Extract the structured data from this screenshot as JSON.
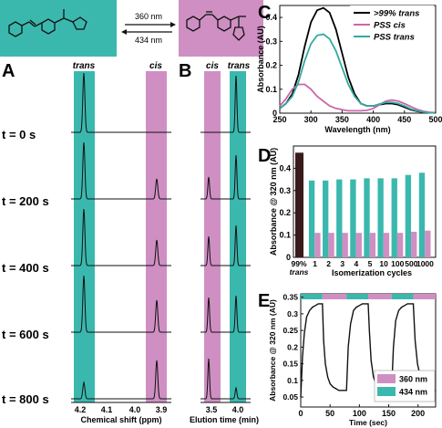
{
  "colors": {
    "teal": "#3bb8ae",
    "pink": "#cf8fc3",
    "dark": "#3a1a1a",
    "trans_line": "#000000",
    "cis_line": "#cc66aa",
    "pss_trans_line": "#33aaa0"
  },
  "scheme": {
    "arrow_top": "360 nm",
    "arrow_bottom": "434 nm"
  },
  "panels": {
    "A": "A",
    "B": "B",
    "C": "C",
    "D": "D",
    "E": "E"
  },
  "panel_A": {
    "label_trans": "trans",
    "label_cis": "cis",
    "times": [
      "t = 0 s",
      "t = 200 s",
      "t = 400 s",
      "t = 600 s",
      "t = 800 s"
    ],
    "xticks": [
      "4.2",
      "4.1",
      "4.0",
      "3.9"
    ],
    "xlabel": "Chemical shift (ppm)"
  },
  "panel_B": {
    "label_cis": "cis",
    "label_trans": "trans",
    "xticks": [
      "3.5",
      "4.0"
    ],
    "xlabel": "Elution time (min)"
  },
  "chart_data": [
    {
      "id": "C",
      "type": "line",
      "xlabel": "Wavelength (nm)",
      "ylabel": "Absorbance (AU)",
      "xlim": [
        250,
        500
      ],
      "ylim": [
        0,
        0.45
      ],
      "xticks": [
        "250",
        "300",
        "350",
        "400",
        "450",
        "500"
      ],
      "yticks": [
        "0",
        "0.1",
        "0.2",
        "0.3",
        "0.4"
      ],
      "legend_position": "top-right",
      "series": [
        {
          "name": ">99% trans",
          "x": [
            250,
            260,
            270,
            280,
            290,
            300,
            310,
            320,
            330,
            340,
            350,
            360,
            370,
            380,
            390,
            400,
            410,
            420,
            430,
            440,
            450,
            460,
            470,
            480,
            490,
            500
          ],
          "y": [
            0.02,
            0.04,
            0.08,
            0.16,
            0.28,
            0.38,
            0.43,
            0.44,
            0.42,
            0.35,
            0.25,
            0.15,
            0.08,
            0.04,
            0.03,
            0.03,
            0.035,
            0.04,
            0.04,
            0.035,
            0.025,
            0.015,
            0.008,
            0.004,
            0.002,
            0.001
          ]
        },
        {
          "name": "PSS cis",
          "x": [
            250,
            260,
            270,
            280,
            290,
            300,
            310,
            320,
            330,
            340,
            350,
            360,
            370,
            380,
            390,
            400,
            410,
            420,
            430,
            440,
            450,
            460,
            470,
            480,
            490,
            500
          ],
          "y": [
            0.03,
            0.06,
            0.1,
            0.12,
            0.12,
            0.1,
            0.07,
            0.05,
            0.03,
            0.02,
            0.015,
            0.01,
            0.01,
            0.01,
            0.012,
            0.02,
            0.035,
            0.05,
            0.055,
            0.05,
            0.04,
            0.028,
            0.016,
            0.008,
            0.004,
            0.002
          ]
        },
        {
          "name": "PSS trans",
          "x": [
            250,
            260,
            270,
            280,
            290,
            300,
            310,
            320,
            330,
            340,
            350,
            360,
            370,
            380,
            390,
            400,
            410,
            420,
            430,
            440,
            450,
            460,
            470,
            480,
            490,
            500
          ],
          "y": [
            0.02,
            0.04,
            0.07,
            0.13,
            0.22,
            0.29,
            0.325,
            0.33,
            0.31,
            0.26,
            0.19,
            0.12,
            0.07,
            0.04,
            0.03,
            0.03,
            0.038,
            0.045,
            0.045,
            0.04,
            0.03,
            0.018,
            0.01,
            0.005,
            0.002,
            0.001
          ]
        }
      ]
    },
    {
      "id": "D",
      "type": "bar",
      "xlabel": "Isomerization cycles",
      "ylabel": "Absorbance @ 320 nm (AU)",
      "ylim": [
        0,
        0.5
      ],
      "yticks": [
        "0",
        "0.1",
        "0.2",
        "0.3",
        "0.4"
      ],
      "reference": {
        "label": "99%",
        "sublabel": "trans",
        "value": 0.47
      },
      "categories": [
        "1",
        "2",
        "3",
        "4",
        "5",
        "10",
        "100",
        "500",
        "1000"
      ],
      "series": [
        {
          "values": [
            0.11,
            0.11,
            0.11,
            0.11,
            0.11,
            0.11,
            0.11,
            0.115,
            0.12
          ]
        },
        {
          "values": [
            0.345,
            0.345,
            0.35,
            0.35,
            0.355,
            0.355,
            0.355,
            0.37,
            0.38
          ]
        }
      ]
    },
    {
      "id": "E",
      "type": "line",
      "xlabel": "Time (sec)",
      "ylabel": "Absorbance @ 320 nm (AU)",
      "xlim": [
        0,
        230
      ],
      "ylim": [
        0.02,
        0.36
      ],
      "xticks": [
        "0",
        "50",
        "100",
        "150",
        "200"
      ],
      "yticks": [
        "0.05",
        "0.1",
        "0.15",
        "0.2",
        "0.25",
        "0.3",
        "0.35"
      ],
      "legend_position": "bottom-right",
      "legend": [
        {
          "name": "360 nm",
          "color_key": "pink"
        },
        {
          "name": "434 nm",
          "color_key": "teal"
        }
      ],
      "irradiation_bar": [
        {
          "start": 0,
          "end": 37,
          "color_key": "teal"
        },
        {
          "start": 37,
          "end": 78,
          "color_key": "pink"
        },
        {
          "start": 78,
          "end": 115,
          "color_key": "teal"
        },
        {
          "start": 115,
          "end": 155,
          "color_key": "pink"
        },
        {
          "start": 155,
          "end": 192,
          "color_key": "teal"
        },
        {
          "start": 192,
          "end": 230,
          "color_key": "pink"
        }
      ],
      "series": [
        {
          "x": [
            0,
            3,
            6,
            10,
            15,
            20,
            25,
            30,
            35,
            37,
            39,
            42,
            46,
            50,
            55,
            60,
            65,
            70,
            75,
            78,
            81,
            85,
            90,
            95,
            100,
            105,
            110,
            115,
            117,
            120,
            124,
            128,
            133,
            138,
            143,
            148,
            153,
            155,
            158,
            162,
            167,
            172,
            177,
            182,
            188,
            192,
            195,
            199,
            204,
            209,
            214,
            219,
            224,
            230
          ],
          "y": [
            0.05,
            0.17,
            0.24,
            0.29,
            0.31,
            0.32,
            0.325,
            0.33,
            0.33,
            0.33,
            0.22,
            0.15,
            0.11,
            0.09,
            0.08,
            0.075,
            0.07,
            0.07,
            0.07,
            0.07,
            0.2,
            0.27,
            0.31,
            0.32,
            0.325,
            0.33,
            0.33,
            0.33,
            0.25,
            0.16,
            0.11,
            0.09,
            0.08,
            0.075,
            0.07,
            0.07,
            0.07,
            0.07,
            0.2,
            0.28,
            0.31,
            0.32,
            0.325,
            0.33,
            0.33,
            0.33,
            0.22,
            0.15,
            0.11,
            0.09,
            0.08,
            0.075,
            0.07,
            0.07
          ]
        }
      ]
    }
  ]
}
